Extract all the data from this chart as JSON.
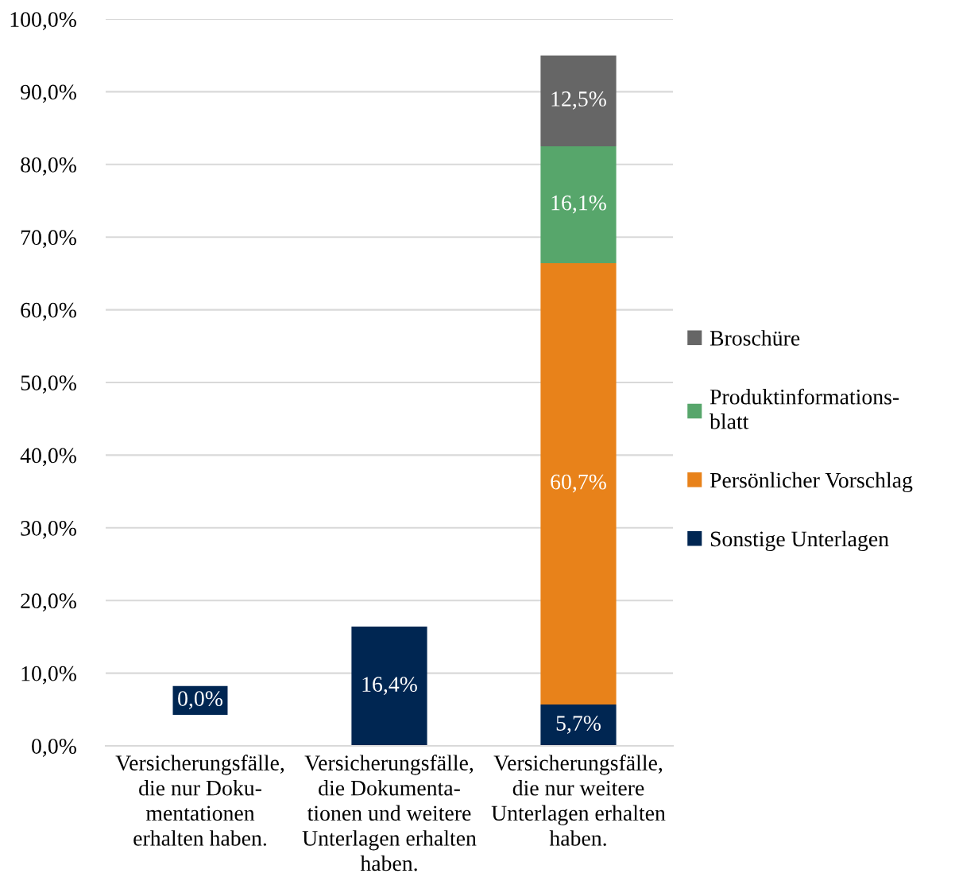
{
  "chart_data": {
    "type": "bar",
    "stacked": true,
    "categories": [
      "Versicherungsfälle,\ndie nur Doku-\nmentationen\nerhalten haben.",
      "Versicherungsfälle,\ndie Dokumenta-\ntionen und weitere\nUnterlagen erhalten\nhaben.",
      "Versicherungsfälle,\ndie nur weitere\nUnterlagen erhalten\nhaben."
    ],
    "series": [
      {
        "name": "Sonstige Unterlagen",
        "color": "#002652",
        "values": [
          0.0,
          16.4,
          5.7
        ],
        "value_labels": [
          "0,0%",
          "16,4%",
          "5,7%"
        ]
      },
      {
        "name": "Persönlicher Vorschlag",
        "color": "#e8821a",
        "values": [
          null,
          null,
          60.7
        ],
        "value_labels": [
          null,
          null,
          "60,7%"
        ]
      },
      {
        "name": "Produktinformations-\nblatt",
        "color": "#57a66b",
        "values": [
          null,
          null,
          16.1
        ],
        "value_labels": [
          null,
          null,
          "16,1%"
        ]
      },
      {
        "name": "Broschüre",
        "color": "#666666",
        "values": [
          null,
          null,
          12.5
        ],
        "value_labels": [
          null,
          null,
          "12,5%"
        ]
      }
    ],
    "ylim": [
      0,
      100
    ],
    "yticks": [
      {
        "value": 0,
        "label": "0,0%"
      },
      {
        "value": 10,
        "label": "10,0%"
      },
      {
        "value": 20,
        "label": "20,0%"
      },
      {
        "value": 30,
        "label": "30,0%"
      },
      {
        "value": 40,
        "label": "40,0%"
      },
      {
        "value": 50,
        "label": "50,0%"
      },
      {
        "value": 60,
        "label": "60,0%"
      },
      {
        "value": 70,
        "label": "70,0%"
      },
      {
        "value": 80,
        "label": "80,0%"
      },
      {
        "value": 90,
        "label": "90,0%"
      },
      {
        "value": 100,
        "label": "100,0%"
      }
    ],
    "grid": "y",
    "legend": "right"
  }
}
